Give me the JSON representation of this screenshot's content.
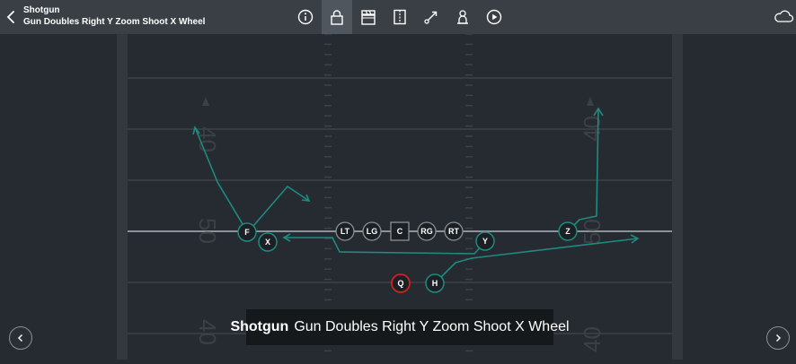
{
  "header": {
    "formation": "Shotgun",
    "play_name": "Gun Doubles Right Y Zoom Shoot X Wheel"
  },
  "toolbar": {
    "icons": [
      "info-icon",
      "lock-icon",
      "clapperboard-icon",
      "flip-icon",
      "route-line-icon",
      "coach-stamp-icon",
      "play-icon"
    ],
    "active": "lock-icon"
  },
  "cloud_icon": "cloud-icon",
  "field": {
    "yard_numbers": [
      "40",
      "50",
      "40",
      "50",
      "40",
      "40"
    ],
    "colors": {
      "field": "#262b31",
      "sideline": "#32373d",
      "route": "#1f8a80",
      "player_bg": "#1c2024",
      "qb_ring": "#cc2222",
      "line_of_scrimmage": "#9aa1a8"
    }
  },
  "players": [
    {
      "label": "LT"
    },
    {
      "label": "LG"
    },
    {
      "label": "C"
    },
    {
      "label": "RG"
    },
    {
      "label": "RT"
    },
    {
      "label": "F"
    },
    {
      "label": "X"
    },
    {
      "label": "Y"
    },
    {
      "label": "Z"
    },
    {
      "label": "H"
    },
    {
      "label": "Q"
    }
  ],
  "caption": {
    "formation": "Shotgun",
    "play": "Gun Doubles Right Y Zoom Shoot X Wheel"
  },
  "nav": {
    "prev_icon": "chevron-left-icon",
    "next_icon": "chevron-right-icon"
  }
}
